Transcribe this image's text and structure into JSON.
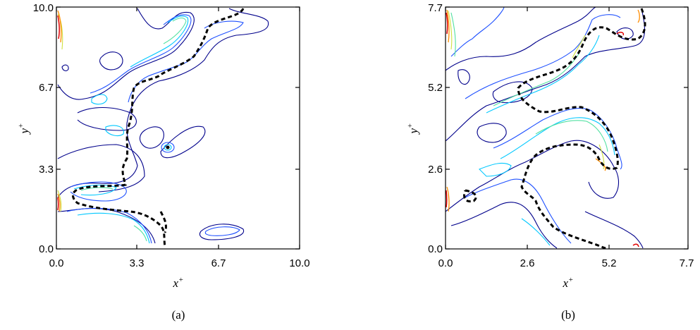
{
  "chart_data": [
    {
      "type": "contour",
      "caption": "(a)",
      "xlabel": "x",
      "xlabel_sup": "+",
      "ylabel": "y",
      "ylabel_sup": "+",
      "xlim": [
        0.0,
        10.0
      ],
      "ylim": [
        0.0,
        10.0
      ],
      "xticks": [
        0.0,
        3.3,
        6.7,
        10.0
      ],
      "yticks": [
        0.0,
        3.3,
        6.7,
        10.0
      ],
      "xtick_labels": [
        "0.0",
        "3.3",
        "6.7",
        "10.0"
      ],
      "ytick_labels": [
        "0.0",
        "3.3",
        "6.7",
        "10.0"
      ],
      "contour_colors": [
        "#00008b",
        "#1e50ff",
        "#00c8ff",
        "#50e0a0",
        "#d0e040",
        "#ff8c00",
        "#e00000"
      ],
      "interface_line": {
        "style": "dashed",
        "color": "#000000"
      }
    },
    {
      "type": "contour",
      "caption": "(b)",
      "xlabel": "x",
      "xlabel_sup": "+",
      "ylabel": "y",
      "ylabel_sup": "+",
      "xlim": [
        0.0,
        7.7
      ],
      "ylim": [
        0.0,
        7.7
      ],
      "xticks": [
        0.0,
        2.6,
        5.2,
        7.7
      ],
      "yticks": [
        0.0,
        2.6,
        5.2,
        7.7
      ],
      "xtick_labels": [
        "0.0",
        "2.6",
        "5.2",
        "7.7"
      ],
      "ytick_labels": [
        "0.0",
        "2.6",
        "5.2",
        "7.7"
      ],
      "contour_colors": [
        "#00008b",
        "#1e50ff",
        "#00c8ff",
        "#50e0a0",
        "#d0e040",
        "#ff8c00",
        "#e00000"
      ],
      "interface_line": {
        "style": "dashed",
        "color": "#000000"
      }
    }
  ]
}
